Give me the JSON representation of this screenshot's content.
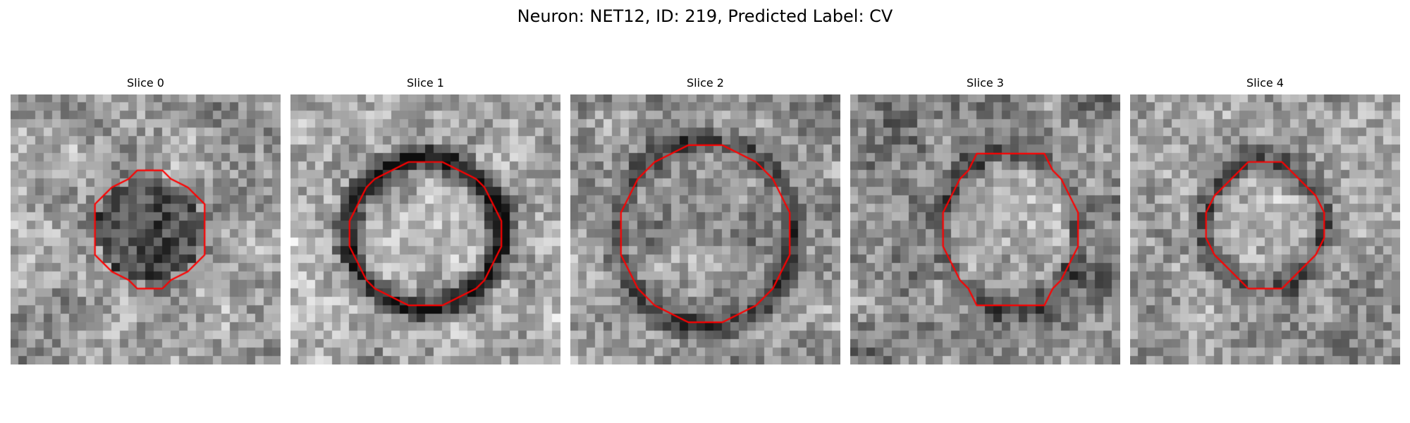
{
  "figure": {
    "suptitle": "Neuron: NET12, ID: 219, Predicted Label: CV",
    "contour_color": "#ff0000",
    "colormap": "gray",
    "panels": [
      {
        "title": "Slice 0"
      },
      {
        "title": "Slice 1"
      },
      {
        "title": "Slice 2"
      },
      {
        "title": "Slice 3"
      },
      {
        "title": "Slice 4"
      }
    ]
  }
}
